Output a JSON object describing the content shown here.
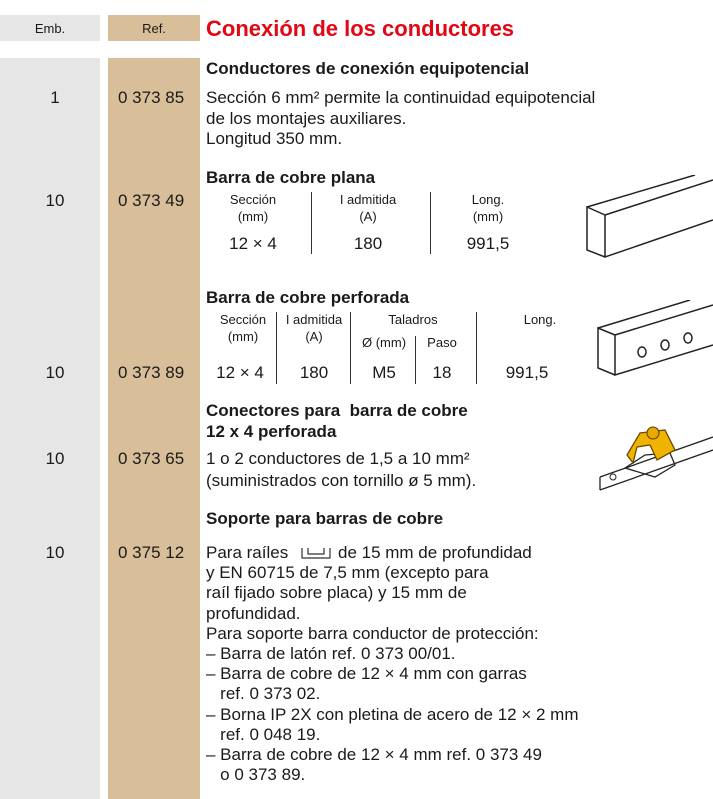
{
  "header": {
    "emb": "Emb.",
    "ref": "Ref.",
    "title": "Conexión de los conductores"
  },
  "items": [
    {
      "emb": "1",
      "ref": "0 373 85",
      "title": "Conductores de conexión equipotencial",
      "lines": [
        "Sección 6 mm² permite la continuidad equipotencial",
        "de los montajes auxiliares.",
        "Longitud 350 mm."
      ]
    },
    {
      "emb": "10",
      "ref": "0 373 49",
      "title": "Barra de cobre plana",
      "table": {
        "headers": [
          [
            "Sección",
            "(mm)"
          ],
          [
            "I admitida",
            "(A)"
          ],
          [
            "Long.",
            "(mm)"
          ]
        ],
        "values": [
          "12 × 4",
          "180",
          "991,5"
        ]
      }
    },
    {
      "emb": "10",
      "ref": "0 373 89",
      "title": "Barra de cobre perforada",
      "table": {
        "headers": [
          [
            "Sección",
            "(mm)"
          ],
          [
            "I admitida",
            "(A)"
          ],
          [
            "Taladros"
          ],
          [
            "Long."
          ]
        ],
        "subheaders": [
          "Ø (mm)",
          "Paso"
        ],
        "values": [
          "12 × 4",
          "180",
          "M5",
          "18",
          "991,5"
        ]
      }
    },
    {
      "emb": "10",
      "ref": "0 373 65",
      "title": [
        "Conectores para  barra de cobre",
        "12 x 4 perforada"
      ],
      "lines": [
        "1 o 2 conductores de 1,5 a 10 mm²",
        "(suministrados con tornillo ø 5 mm)."
      ]
    },
    {
      "emb": "10",
      "ref": "0 375 12",
      "title": "Soporte para barras de cobre",
      "lines": [
        [
          "Para raíles",
          "de 15 mm de profundidad"
        ],
        "y EN 60715 de 7,5 mm (excepto para",
        "raíl fijado sobre placa) y 15 mm de",
        "profundidad.",
        "Para soporte barra conductor de protección:",
        "– Barra de latón ref. 0 373 00/01.",
        "– Barra de cobre de 12 × 4 mm con garras",
        "   ref. 0 373 02.",
        "– Borna IP 2X con pletina de acero de 12 × 2 mm",
        "   ref. 0 048 19.",
        "– Barra de cobre de 12 × 4 mm ref. 0 373 49",
        "   o 0 373 89."
      ]
    }
  ]
}
